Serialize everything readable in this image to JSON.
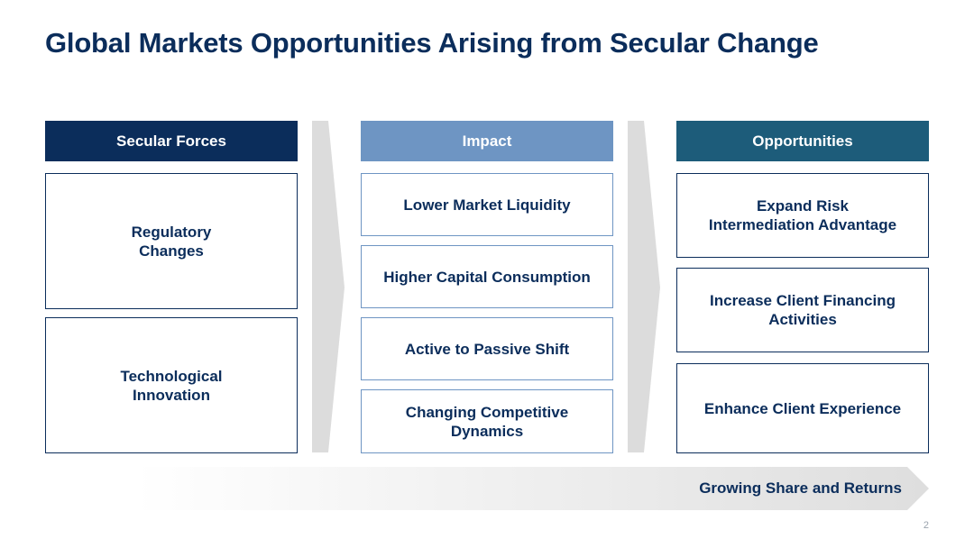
{
  "title": "Global Markets Opportunities Arising from Secular Change",
  "colors": {
    "navy": "#0b2d5b",
    "impact_blue": "#6e95c3",
    "teal": "#1d5c7a",
    "separator_gray": "#dcdcdc"
  },
  "columns": {
    "forces": {
      "header": "Secular Forces",
      "items": [
        "Regulatory\nChanges",
        "Technological\nInnovation"
      ]
    },
    "impact": {
      "header": "Impact",
      "items": [
        "Lower Market Liquidity",
        "Higher Capital Consumption",
        "Active to Passive Shift",
        "Changing Competitive\nDynamics"
      ]
    },
    "opportunities": {
      "header": "Opportunities",
      "items": [
        "Expand Risk\nIntermediation Advantage",
        "Increase Client Financing\nActivities",
        "Enhance Client Experience"
      ]
    }
  },
  "bottom_arrow": {
    "label": "Growing Share and Returns"
  },
  "page_number": "2"
}
